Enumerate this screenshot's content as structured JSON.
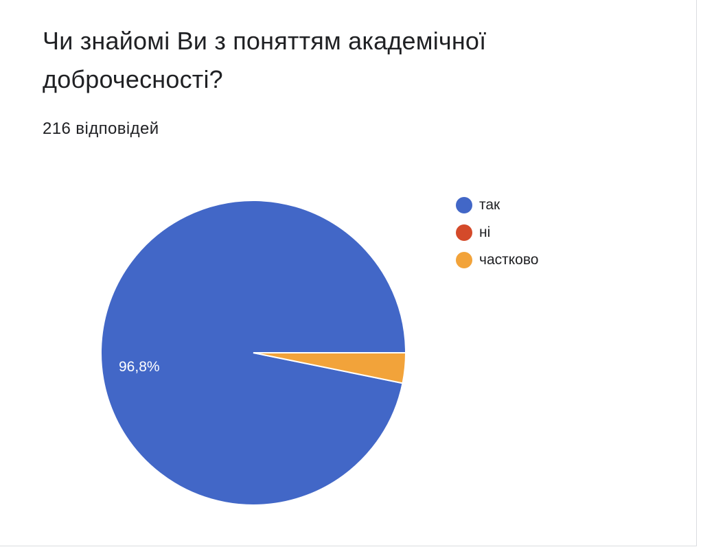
{
  "question": {
    "title": "Чи знайомі Ви з поняттям академічної доброчесності?",
    "response_count": "216 відповідей"
  },
  "chart_data": {
    "type": "pie",
    "title": "Чи знайомі Ви з поняттям академічної доброчесності?",
    "categories": [
      "так",
      "ні",
      "частково"
    ],
    "values": [
      96.8,
      0,
      3.2
    ],
    "colors": [
      "#4267c7",
      "#d44a2a",
      "#f2a33a"
    ],
    "data_labels": [
      "96,8%",
      "",
      ""
    ],
    "legend_position": "right"
  }
}
